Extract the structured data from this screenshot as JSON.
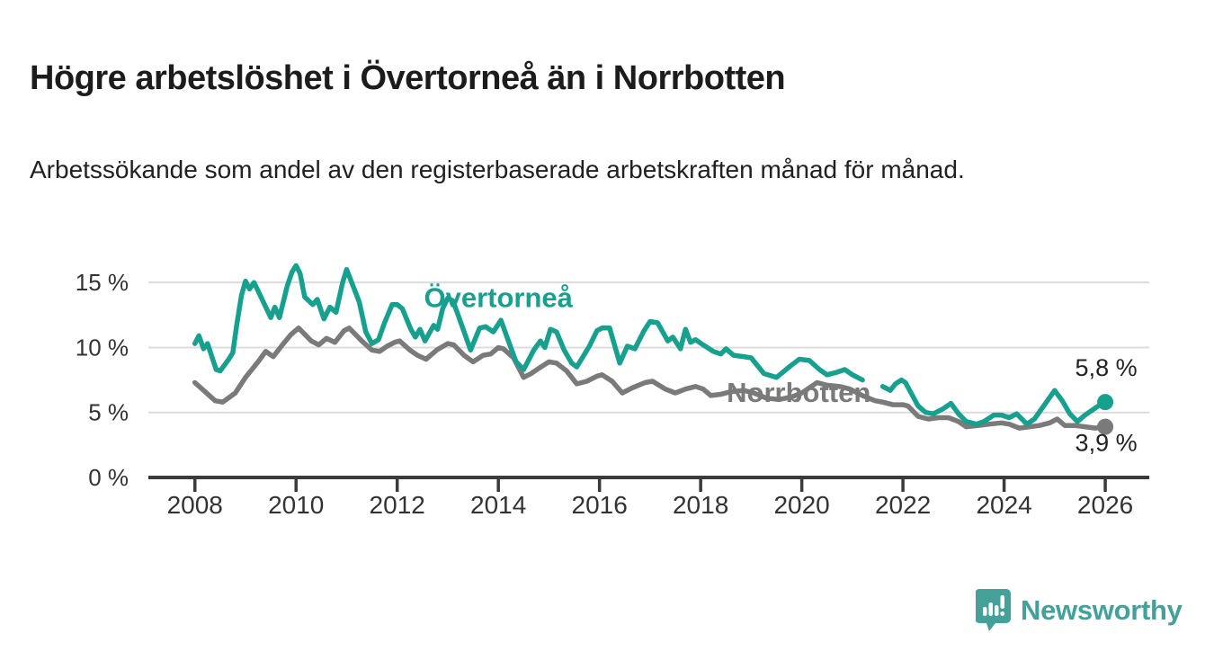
{
  "header": {
    "title": "Högre arbetslöshet i Övertorneå än i Norrbotten",
    "subtitle": "Arbetssökande som andel av den registerbaserade arbetskraften månad för månad."
  },
  "chart_data": {
    "type": "line",
    "unit": "%",
    "grid": "horizontal-only",
    "x_axis": {
      "min": 2007.08,
      "max": 2026.87,
      "ticks": [
        2008,
        2010,
        2012,
        2014,
        2016,
        2018,
        2020,
        2022,
        2024,
        2026
      ]
    },
    "y_axis": {
      "min": 0,
      "max": 16.88,
      "ticks": [
        {
          "value": 0,
          "label": "0 %"
        },
        {
          "value": 5,
          "label": "5 %"
        },
        {
          "value": 10,
          "label": "10 %"
        },
        {
          "value": 15,
          "label": "15 %"
        }
      ]
    },
    "series": [
      {
        "name": "Norrbotten",
        "slug": "norrbotten",
        "color": "#7a7a7a",
        "label_anchor": {
          "x": 2019.94,
          "y": 5.8
        },
        "end_label": "3,9 %",
        "end_label_position": "below",
        "end_value": 3.9,
        "segments": [
          [
            [
              2008.0,
              7.3
            ],
            [
              2008.2,
              6.6
            ],
            [
              2008.4,
              5.9
            ],
            [
              2008.55,
              5.8
            ],
            [
              2008.8,
              6.5
            ],
            [
              2009.0,
              7.7
            ],
            [
              2009.25,
              8.9
            ],
            [
              2009.4,
              9.7
            ],
            [
              2009.55,
              9.3
            ],
            [
              2009.75,
              10.3
            ],
            [
              2009.9,
              11.0
            ],
            [
              2010.05,
              11.5
            ],
            [
              2010.3,
              10.5
            ],
            [
              2010.45,
              10.2
            ],
            [
              2010.6,
              10.7
            ],
            [
              2010.77,
              10.4
            ],
            [
              2010.95,
              11.3
            ],
            [
              2011.05,
              11.5
            ],
            [
              2011.3,
              10.5
            ],
            [
              2011.5,
              9.8
            ],
            [
              2011.65,
              9.7
            ],
            [
              2011.8,
              10.1
            ],
            [
              2011.95,
              10.4
            ],
            [
              2012.05,
              10.5
            ],
            [
              2012.25,
              9.8
            ],
            [
              2012.4,
              9.4
            ],
            [
              2012.57,
              9.1
            ],
            [
              2012.78,
              9.8
            ],
            [
              2013.0,
              10.3
            ],
            [
              2013.12,
              10.2
            ],
            [
              2013.32,
              9.4
            ],
            [
              2013.5,
              8.9
            ],
            [
              2013.7,
              9.4
            ],
            [
              2013.85,
              9.5
            ],
            [
              2014.0,
              10.0
            ],
            [
              2014.1,
              9.9
            ],
            [
              2014.3,
              9.2
            ],
            [
              2014.5,
              7.7
            ],
            [
              2014.65,
              8.0
            ],
            [
              2014.8,
              8.4
            ],
            [
              2015.0,
              8.9
            ],
            [
              2015.15,
              8.8
            ],
            [
              2015.35,
              8.2
            ],
            [
              2015.55,
              7.2
            ],
            [
              2015.75,
              7.4
            ],
            [
              2015.95,
              7.8
            ],
            [
              2016.05,
              7.9
            ],
            [
              2016.25,
              7.4
            ],
            [
              2016.45,
              6.5
            ],
            [
              2016.65,
              6.9
            ],
            [
              2016.9,
              7.3
            ],
            [
              2017.05,
              7.4
            ],
            [
              2017.3,
              6.8
            ],
            [
              2017.5,
              6.5
            ],
            [
              2017.7,
              6.8
            ],
            [
              2017.9,
              7.0
            ],
            [
              2018.05,
              6.8
            ],
            [
              2018.2,
              6.3
            ],
            [
              2018.4,
              6.4
            ],
            [
              2018.6,
              6.6
            ],
            [
              2018.85,
              6.7
            ],
            [
              2019.05,
              6.5
            ],
            [
              2019.3,
              6.1
            ],
            [
              2019.55,
              6.0
            ],
            [
              2019.8,
              6.2
            ],
            [
              2020.0,
              6.5
            ],
            [
              2020.3,
              7.3
            ],
            [
              2020.5,
              7.1
            ],
            [
              2020.75,
              7.0
            ],
            [
              2020.95,
              6.8
            ],
            [
              2021.2,
              6.3
            ],
            [
              2021.45,
              5.9
            ],
            [
              2021.6,
              5.8
            ],
            [
              2021.8,
              5.6
            ],
            [
              2022.0,
              5.6
            ],
            [
              2022.1,
              5.5
            ],
            [
              2022.3,
              4.7
            ],
            [
              2022.5,
              4.5
            ],
            [
              2022.7,
              4.6
            ],
            [
              2022.9,
              4.6
            ],
            [
              2023.1,
              4.3
            ],
            [
              2023.25,
              3.9
            ],
            [
              2023.5,
              4.0
            ],
            [
              2023.7,
              4.1
            ],
            [
              2023.95,
              4.2
            ],
            [
              2024.1,
              4.1
            ],
            [
              2024.3,
              3.8
            ],
            [
              2024.5,
              3.9
            ],
            [
              2024.7,
              4.0
            ],
            [
              2024.9,
              4.2
            ],
            [
              2025.05,
              4.5
            ],
            [
              2025.2,
              4.0
            ],
            [
              2025.4,
              4.0
            ],
            [
              2025.6,
              3.9
            ],
            [
              2025.8,
              3.8
            ],
            [
              2026.0,
              3.9
            ]
          ]
        ]
      },
      {
        "name": "Övertorneå",
        "slug": "overtornea",
        "color": "#18a08f",
        "label_anchor": {
          "x": 2014.0,
          "y": 13.1
        },
        "end_label": "5,8 %",
        "end_label_position": "above",
        "end_value": 5.8,
        "segments": [
          [
            [
              2008.0,
              10.3
            ],
            [
              2008.08,
              10.9
            ],
            [
              2008.17,
              9.9
            ],
            [
              2008.25,
              10.3
            ],
            [
              2008.42,
              8.3
            ],
            [
              2008.5,
              8.2
            ],
            [
              2008.67,
              9.1
            ],
            [
              2008.75,
              9.6
            ],
            [
              2008.83,
              11.8
            ],
            [
              2008.92,
              14.0
            ],
            [
              2009.0,
              15.1
            ],
            [
              2009.08,
              14.5
            ],
            [
              2009.17,
              15.0
            ],
            [
              2009.33,
              13.7
            ],
            [
              2009.5,
              12.3
            ],
            [
              2009.58,
              13.1
            ],
            [
              2009.67,
              12.3
            ],
            [
              2009.83,
              14.8
            ],
            [
              2009.92,
              15.8
            ],
            [
              2010.0,
              16.3
            ],
            [
              2010.08,
              15.7
            ],
            [
              2010.17,
              13.9
            ],
            [
              2010.33,
              13.3
            ],
            [
              2010.42,
              13.7
            ],
            [
              2010.55,
              12.2
            ],
            [
              2010.67,
              13.1
            ],
            [
              2010.79,
              12.7
            ],
            [
              2010.92,
              15.0
            ],
            [
              2011.0,
              16.0
            ],
            [
              2011.08,
              15.2
            ],
            [
              2011.25,
              13.5
            ],
            [
              2011.38,
              11.2
            ],
            [
              2011.5,
              10.3
            ],
            [
              2011.63,
              10.6
            ],
            [
              2011.75,
              11.9
            ],
            [
              2011.9,
              13.3
            ],
            [
              2012.0,
              13.3
            ],
            [
              2012.1,
              13.0
            ],
            [
              2012.27,
              11.4
            ],
            [
              2012.36,
              10.8
            ],
            [
              2012.45,
              11.4
            ],
            [
              2012.55,
              10.5
            ],
            [
              2012.72,
              11.7
            ],
            [
              2012.8,
              11.4
            ],
            [
              2012.9,
              13.0
            ],
            [
              2013.0,
              13.8
            ],
            [
              2013.1,
              13.6
            ],
            [
              2013.25,
              12.0
            ],
            [
              2013.45,
              9.8
            ],
            [
              2013.63,
              11.5
            ],
            [
              2013.75,
              11.6
            ],
            [
              2013.9,
              11.2
            ],
            [
              2014.05,
              12.1
            ],
            [
              2014.2,
              10.5
            ],
            [
              2014.35,
              8.9
            ],
            [
              2014.5,
              8.3
            ],
            [
              2014.7,
              9.8
            ],
            [
              2014.83,
              10.5
            ],
            [
              2014.92,
              10.0
            ],
            [
              2015.03,
              11.4
            ],
            [
              2015.15,
              11.2
            ],
            [
              2015.3,
              9.8
            ],
            [
              2015.45,
              8.8
            ],
            [
              2015.55,
              8.5
            ],
            [
              2015.8,
              10.1
            ],
            [
              2015.95,
              11.3
            ],
            [
              2016.05,
              11.5
            ],
            [
              2016.2,
              11.5
            ],
            [
              2016.4,
              8.8
            ],
            [
              2016.55,
              10.1
            ],
            [
              2016.7,
              9.9
            ],
            [
              2016.88,
              11.3
            ],
            [
              2017.0,
              12.0
            ],
            [
              2017.15,
              11.9
            ],
            [
              2017.35,
              10.5
            ],
            [
              2017.45,
              10.8
            ],
            [
              2017.6,
              9.9
            ],
            [
              2017.7,
              11.4
            ],
            [
              2017.8,
              10.4
            ],
            [
              2017.9,
              10.6
            ],
            [
              2018.05,
              10.2
            ],
            [
              2018.25,
              9.7
            ],
            [
              2018.4,
              9.5
            ],
            [
              2018.5,
              9.9
            ],
            [
              2018.65,
              9.4
            ],
            [
              2018.85,
              9.3
            ],
            [
              2019.0,
              9.2
            ],
            [
              2019.25,
              8.0
            ],
            [
              2019.5,
              7.7
            ],
            [
              2019.75,
              8.5
            ],
            [
              2019.95,
              9.1
            ],
            [
              2020.15,
              9.0
            ],
            [
              2020.35,
              8.3
            ],
            [
              2020.5,
              7.9
            ],
            [
              2020.7,
              8.1
            ],
            [
              2020.85,
              8.3
            ],
            [
              2021.0,
              7.9
            ],
            [
              2021.2,
              7.5
            ]
          ],
          [
            [
              2021.6,
              7.0
            ],
            [
              2021.75,
              6.7
            ],
            [
              2021.85,
              7.2
            ],
            [
              2021.97,
              7.5
            ],
            [
              2022.05,
              7.3
            ],
            [
              2022.3,
              5.5
            ],
            [
              2022.45,
              5.0
            ],
            [
              2022.6,
              4.9
            ],
            [
              2022.8,
              5.3
            ],
            [
              2022.95,
              5.7
            ],
            [
              2023.1,
              4.9
            ],
            [
              2023.25,
              4.3
            ],
            [
              2023.45,
              4.1
            ],
            [
              2023.6,
              4.3
            ],
            [
              2023.8,
              4.8
            ],
            [
              2023.95,
              4.8
            ],
            [
              2024.1,
              4.6
            ],
            [
              2024.25,
              4.9
            ],
            [
              2024.45,
              4.1
            ],
            [
              2024.6,
              4.5
            ],
            [
              2024.8,
              5.6
            ],
            [
              2025.0,
              6.7
            ],
            [
              2025.15,
              5.9
            ],
            [
              2025.3,
              4.9
            ],
            [
              2025.45,
              4.3
            ],
            [
              2025.6,
              4.8
            ],
            [
              2025.75,
              5.2
            ],
            [
              2025.9,
              5.6
            ],
            [
              2026.0,
              5.8
            ]
          ]
        ]
      }
    ],
    "colors": {
      "grid": "#dcdcdc",
      "axis": "#3b3b3b",
      "tick_text": "#333333",
      "value_label_text": "#222222"
    }
  },
  "footer": {
    "brand": "Newsworthy"
  }
}
